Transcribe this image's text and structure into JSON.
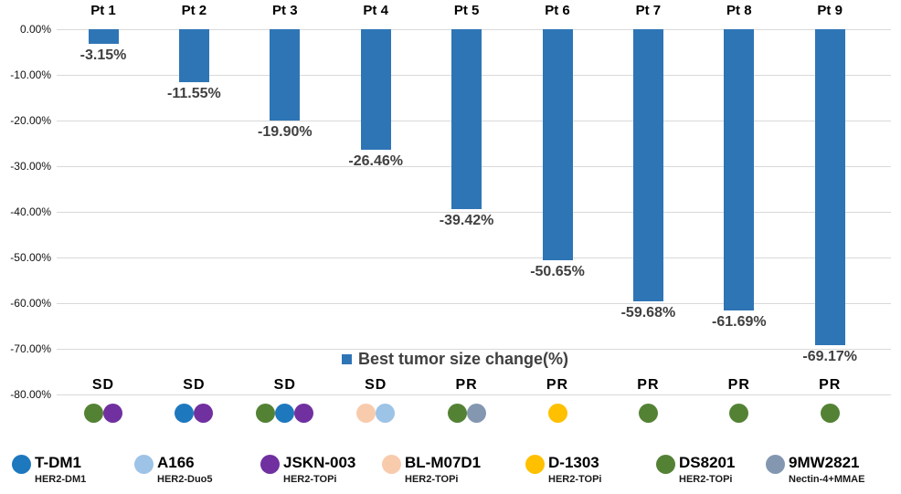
{
  "chart_data": {
    "type": "bar",
    "title": "",
    "series_legend": "Best tumor size change(%)",
    "categories": [
      "Pt 1",
      "Pt 2",
      "Pt 3",
      "Pt 4",
      "Pt 5",
      "Pt 6",
      "Pt 7",
      "Pt 8",
      "Pt 9"
    ],
    "values": [
      -3.15,
      -11.55,
      -19.9,
      -26.46,
      -39.42,
      -50.65,
      -59.68,
      -61.69,
      -69.17
    ],
    "value_labels": [
      "-3.15%",
      "-11.55%",
      "-19.90%",
      "-26.46%",
      "-39.42%",
      "-50.65%",
      "-59.68%",
      "-61.69%",
      "-69.17%"
    ],
    "responses": [
      "SD",
      "SD",
      "SD",
      "SD",
      "PR",
      "PR",
      "PR",
      "PR",
      "PR"
    ],
    "treatment_dots": [
      [
        "ds8201",
        "jskn003"
      ],
      [
        "tdm1",
        "jskn003"
      ],
      [
        "ds8201",
        "tdm1",
        "jskn003"
      ],
      [
        "blm07d1",
        "a166"
      ],
      [
        "ds8201",
        "mw9"
      ],
      [
        "d1303"
      ],
      [
        "ds8201"
      ],
      [
        "ds8201"
      ],
      [
        "ds8201"
      ]
    ],
    "yticks": [
      "0.00%",
      "-10.00%",
      "-20.00%",
      "-30.00%",
      "-40.00%",
      "-50.00%",
      "-60.00%",
      "-70.00%",
      "-80.00%"
    ],
    "ylim": [
      -80,
      0
    ],
    "grid": "horizontal",
    "legend_position": "center-inside",
    "bar_color": "#2E75B6",
    "gridline_color": "#d9d9d9"
  },
  "drug_colors": {
    "tdm1": "#1E78BE",
    "a166": "#9DC3E6",
    "jskn003": "#7030A0",
    "blm07d1": "#F8CBAD",
    "d1303": "#FFC000",
    "ds8201": "#548235",
    "mw9": "#8497B0"
  },
  "legend": {
    "items": [
      {
        "key": "tdm1",
        "name": "T-DM1",
        "sub": "HER2-DM1"
      },
      {
        "key": "a166",
        "name": "A166",
        "sub": "HER2-Duo5"
      },
      {
        "key": "jskn003",
        "name": "JSKN-003",
        "sub": "HER2-TOPi"
      },
      {
        "key": "blm07d1",
        "name": "BL-M07D1",
        "sub": "HER2-TOPi"
      },
      {
        "key": "d1303",
        "name": "D-1303",
        "sub": "HER2-TOPi"
      },
      {
        "key": "ds8201",
        "name": "DS8201",
        "sub": "HER2-TOPi"
      },
      {
        "key": "mw9",
        "name": "9MW2821",
        "sub": "Nectin-4+MMAE"
      }
    ]
  }
}
